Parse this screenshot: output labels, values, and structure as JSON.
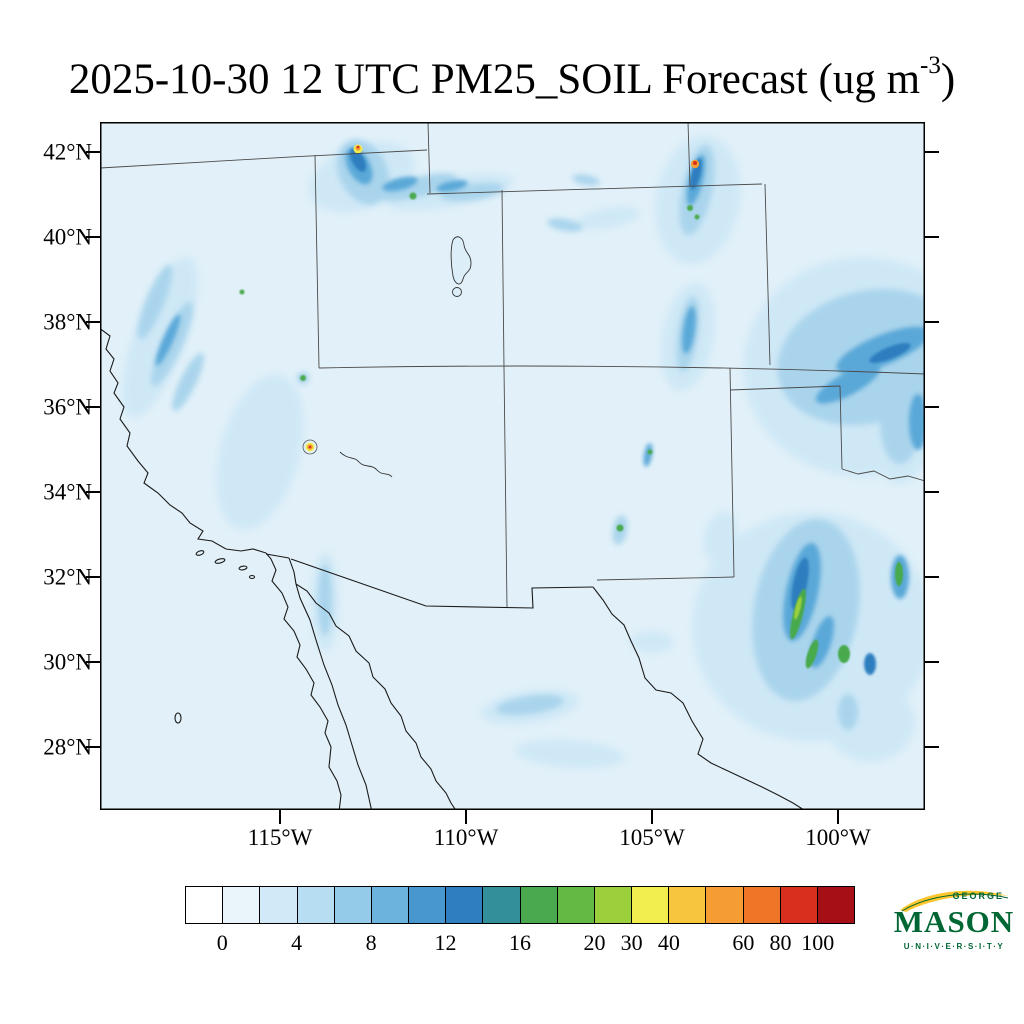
{
  "title": {
    "main": "2025-10-30 12 UTC PM25_SOIL Forecast (ug m",
    "sup": "-3",
    "close": ")"
  },
  "map": {
    "lat_labels": [
      "42°N",
      "40°N",
      "38°N",
      "36°N",
      "34°N",
      "32°N",
      "30°N",
      "28°N"
    ],
    "lon_labels": [
      "115°W",
      "110°W",
      "105°W",
      "100°W"
    ]
  },
  "colorbar": {
    "labels": [
      "0",
      "4",
      "8",
      "12",
      "16",
      "20",
      "30",
      "40",
      "60",
      "80",
      "100"
    ],
    "label_boundaries": [
      1,
      3,
      5,
      7,
      9,
      11,
      12,
      13,
      15,
      16,
      17
    ],
    "n_cells": 18,
    "colors": [
      "#ffffff",
      "#e9f5fb",
      "#d2eaf7",
      "#b6ddf1",
      "#93cbe8",
      "#6cb4dd",
      "#4997cf",
      "#2f7ebf",
      "#33909b",
      "#4aa94e",
      "#63b944",
      "#9ccf3c",
      "#f2ee4f",
      "#f7c63c",
      "#f59d32",
      "#ef7627",
      "#d7301f",
      "#a50f15"
    ]
  },
  "logo": {
    "george": "GEORGE",
    "mason": "MASON",
    "university": "U·N·I·V·E·R·S·I·T·Y"
  },
  "chart_data": {
    "type": "heatmap",
    "title": "2025-10-30 12 UTC PM25_SOIL Forecast (ug m-3)",
    "variable": "PM25_SOIL",
    "units": "ug m-3",
    "valid_time": "2025-10-30 12 UTC",
    "region": "Southwestern United States and northern Mexico",
    "lat_ticks": [
      42,
      40,
      38,
      36,
      34,
      32,
      30,
      28
    ],
    "lon_ticks": [
      -115,
      -110,
      -105,
      -100
    ],
    "colorbar_levels": [
      0,
      4,
      8,
      12,
      16,
      20,
      30,
      40,
      60,
      80,
      100
    ],
    "background_range": "0-8 ug m-3 over most of the domain",
    "hotspots": [
      {
        "approx_lat": 42.1,
        "approx_lon": -112.9,
        "peak_level": "30-60"
      },
      {
        "approx_lat": 41.5,
        "approx_lon": -104.3,
        "peak_level": "60-100"
      },
      {
        "approx_lat": 35.1,
        "approx_lon": -114.6,
        "peak_level": "40-80"
      },
      {
        "approx_lat": 38.7,
        "approx_lon": -116.8,
        "peak_level": "16-20"
      },
      {
        "approx_lat": 36.6,
        "approx_lon": -115.8,
        "peak_level": "16-20"
      },
      {
        "approx_lat": 33.1,
        "approx_lon": -105.3,
        "peak_level": "16-20"
      },
      {
        "approx_lat": 31.7,
        "approx_lon": -101.8,
        "peak_level": "16-30"
      },
      {
        "approx_lat": 31.9,
        "approx_lon": -99.8,
        "peak_level": "16-30"
      }
    ]
  }
}
